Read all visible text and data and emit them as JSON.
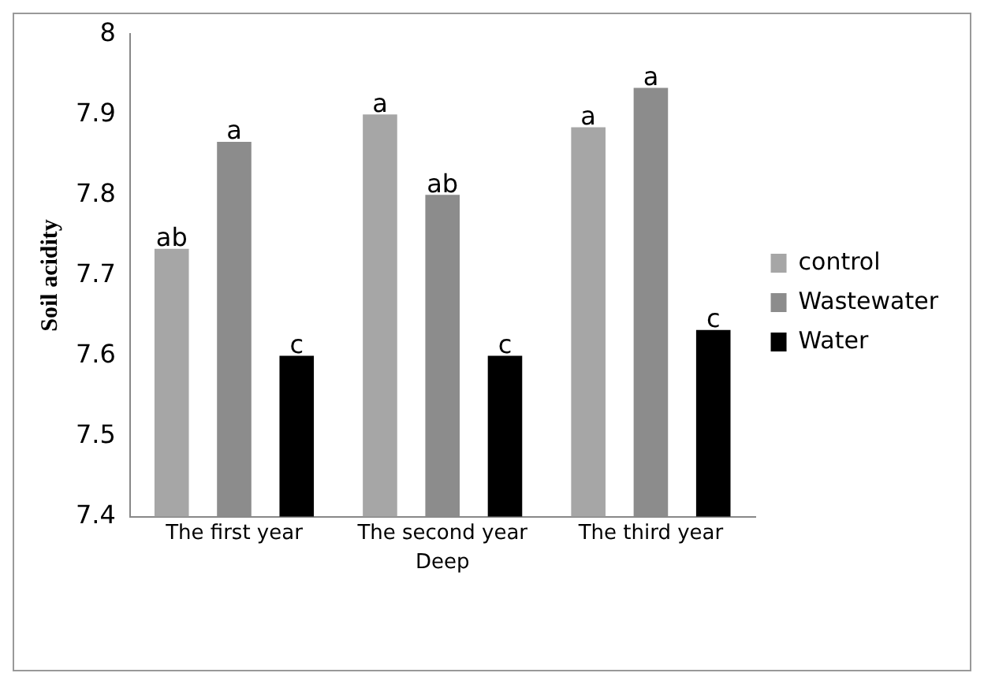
{
  "chart_data": {
    "type": "bar",
    "xlabel": "Deep",
    "ylabel": "Soil acidity",
    "categories": [
      "The first year",
      "The second year",
      "The third year"
    ],
    "series": [
      {
        "name": "control",
        "color": "#a6a6a6",
        "values": [
          7.733,
          7.9,
          7.884
        ],
        "value_labels": [
          "ab",
          "a",
          "a"
        ]
      },
      {
        "name": "Wastewater",
        "color": "#8c8c8c",
        "values": [
          7.866,
          7.8,
          7.933
        ],
        "value_labels": [
          "a",
          "ab",
          "a"
        ]
      },
      {
        "name": "Water",
        "color": "#000000",
        "values": [
          7.6,
          7.6,
          7.632
        ],
        "value_labels": [
          "c",
          "c",
          "c"
        ]
      }
    ],
    "ylim": [
      7.4,
      8
    ],
    "yticks": [
      7.4,
      7.5,
      7.6,
      7.7,
      7.8,
      7.9,
      8
    ],
    "grid": false,
    "legend": "right"
  }
}
